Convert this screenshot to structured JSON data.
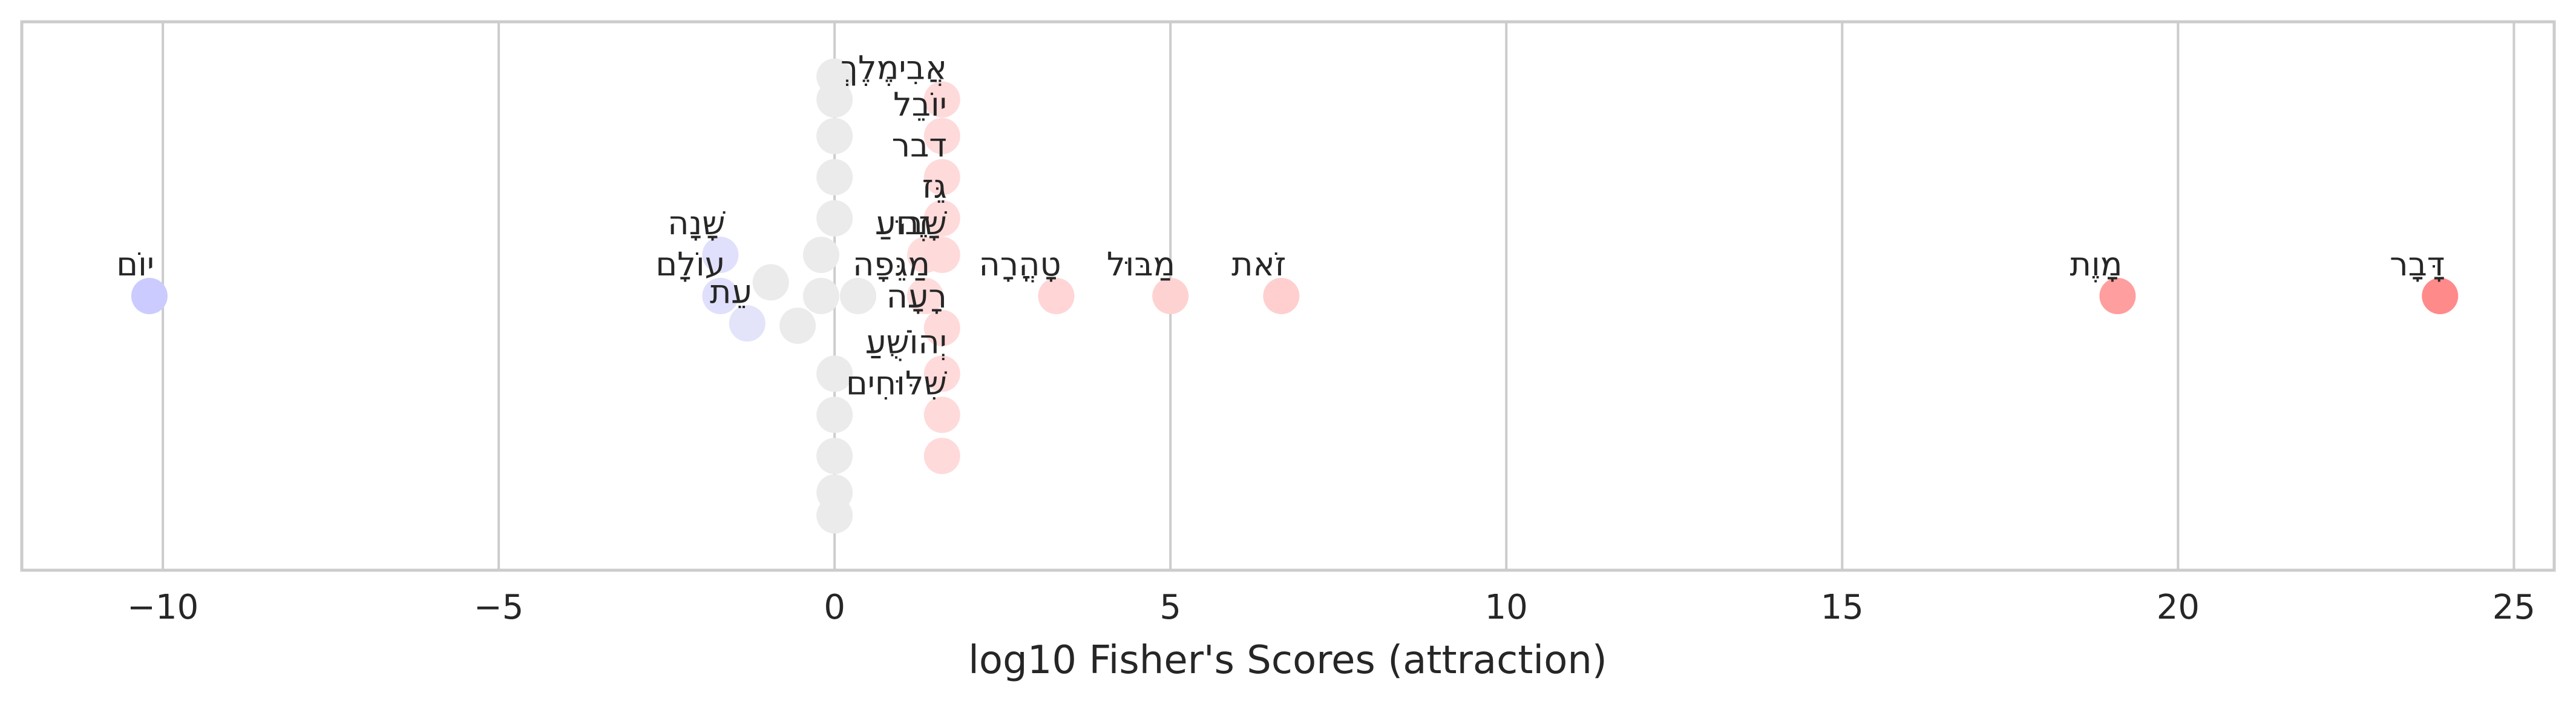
{
  "chart_data": {
    "type": "scatter",
    "title": "",
    "xlabel": "log10 Fisher's Scores (attraction)",
    "ylabel": "",
    "xlim": [
      -12.1,
      25.6
    ],
    "x_ticks": [
      -10,
      -5,
      0,
      5,
      10,
      15,
      20,
      25
    ],
    "x_tick_labels": [
      "−10",
      "−5",
      "0",
      "5",
      "10",
      "15",
      "20",
      "25"
    ],
    "ylim": [
      -0.6,
      0.6
    ],
    "grid": {
      "vertical": true,
      "horizontal": false
    },
    "color_scale": {
      "negative": "#c8c8ff",
      "neutral": "#ebebeb",
      "positive": "#ff8080"
    },
    "points": [
      {
        "x": -10.2,
        "y": 0.0,
        "label": "יוֹם",
        "color": "#cbcbff"
      },
      {
        "x": -1.7,
        "y": 0.09,
        "label": "שָׁנָה",
        "color": "#e0e0fc"
      },
      {
        "x": -1.7,
        "y": 0.0,
        "label": "עוֹלָם",
        "color": "#e0e0fc"
      },
      {
        "x": -1.3,
        "y": -0.06,
        "label": "עֵת",
        "color": "#e3e3fa"
      },
      {
        "x": -0.95,
        "y": 0.03,
        "label": "",
        "color": "#ebebeb"
      },
      {
        "x": -0.55,
        "y": -0.065,
        "label": "",
        "color": "#ebebeb"
      },
      {
        "x": -0.2,
        "y": 0.09,
        "label": "",
        "color": "#ebebeb"
      },
      {
        "x": -0.2,
        "y": 0.0,
        "label": "",
        "color": "#ebebeb"
      },
      {
        "x": 0.0,
        "y": 0.48,
        "label": "",
        "color": "#ebebeb"
      },
      {
        "x": 0.0,
        "y": 0.43,
        "label": "",
        "color": "#ebebeb"
      },
      {
        "x": 0.0,
        "y": 0.35,
        "label": "",
        "color": "#ebebeb"
      },
      {
        "x": 0.0,
        "y": 0.26,
        "label": "",
        "color": "#ebebeb"
      },
      {
        "x": 0.0,
        "y": 0.17,
        "label": "",
        "color": "#ebebeb"
      },
      {
        "x": 0.0,
        "y": -0.17,
        "label": "",
        "color": "#ebebeb"
      },
      {
        "x": 0.0,
        "y": -0.26,
        "label": "",
        "color": "#ebebeb"
      },
      {
        "x": 0.0,
        "y": -0.35,
        "label": "",
        "color": "#ebebeb"
      },
      {
        "x": 0.0,
        "y": -0.43,
        "label": "",
        "color": "#ebebeb"
      },
      {
        "x": 0.0,
        "y": -0.48,
        "label": "",
        "color": "#ebebeb"
      },
      {
        "x": 0.35,
        "y": 0.0,
        "label": "",
        "color": "#ebebeb"
      },
      {
        "x": 1.35,
        "y": 0.09,
        "label": "זֶה",
        "color": "#ffdcdc"
      },
      {
        "x": 1.35,
        "y": 0.0,
        "label": "מַגֵּפָה",
        "color": "#ffdcdc"
      },
      {
        "x": 1.6,
        "y": 0.43,
        "label": "אֲבִימֶלֶךְ",
        "color": "#ffdada"
      },
      {
        "x": 1.6,
        "y": 0.35,
        "label": "יוֹבֵל",
        "color": "#ffdada"
      },
      {
        "x": 1.6,
        "y": 0.26,
        "label": "דבר",
        "color": "#ffdada"
      },
      {
        "x": 1.6,
        "y": 0.17,
        "label": "גֵּז",
        "color": "#ffdada"
      },
      {
        "x": 1.6,
        "y": -0.07,
        "label": "רָעָה",
        "color": "#ffdada"
      },
      {
        "x": 1.6,
        "y": -0.17,
        "label": "יְהוֹשֻׁעַ",
        "color": "#ffdada"
      },
      {
        "x": 1.6,
        "y": -0.26,
        "label": "שִׁלּוּחִים",
        "color": "#ffdada"
      },
      {
        "x": 1.6,
        "y": -0.35,
        "label": "",
        "color": "#ffdada"
      },
      {
        "x": 1.6,
        "y": 0.09,
        "label": "שָׁבוּעַ",
        "color": "#ffdada"
      },
      {
        "x": 3.3,
        "y": 0.0,
        "label": "טָהֳרָה",
        "color": "#ffd5d5"
      },
      {
        "x": 5.0,
        "y": 0.0,
        "label": "מַבּוּל",
        "color": "#ffd2d2"
      },
      {
        "x": 6.65,
        "y": 0.0,
        "label": "זֹאת",
        "color": "#ffcfcf"
      },
      {
        "x": 19.1,
        "y": 0.0,
        "label": "מָוֶת",
        "color": "#ff9e9e"
      },
      {
        "x": 23.9,
        "y": 0.0,
        "label": "דָּבָר",
        "color": "#ff8a8a"
      }
    ]
  }
}
